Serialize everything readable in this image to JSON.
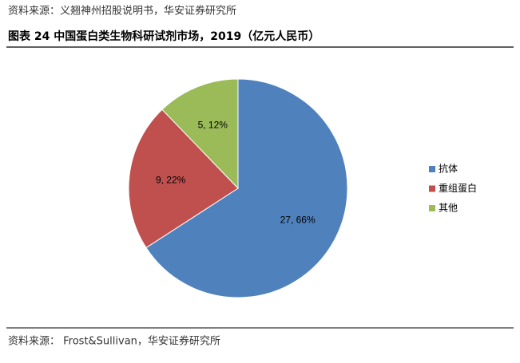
{
  "chart_data": {
    "type": "pie",
    "top_note": "资料来源：义翘神州招股说明书，华安证券研究所",
    "title": "图表 24  中国蛋白类生物科研试剂市场，2019（亿元人民币）",
    "source": "资料来源：   Frost&Sullivan，华安证券研究所",
    "categories": [
      "抗体",
      "重组蛋白",
      "其他"
    ],
    "values": [
      27,
      9,
      5
    ],
    "value_labels": [
      "27, 66%",
      "9, 22%",
      "5, 12%"
    ],
    "colors": [
      "#4f81bd",
      "#c0504d",
      "#9bbb59"
    ],
    "legend": "right"
  }
}
